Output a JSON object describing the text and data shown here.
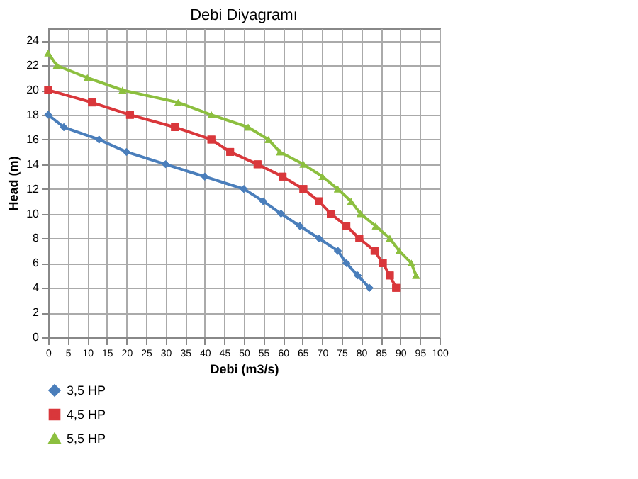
{
  "chart_data": {
    "type": "line",
    "title": "Debi Diyagramı",
    "xlabel": "Debi (m3/s)",
    "ylabel": "Head (m)",
    "xlim": [
      0,
      100
    ],
    "xticks": [
      0,
      5,
      10,
      15,
      20,
      25,
      30,
      35,
      40,
      45,
      50,
      55,
      60,
      65,
      70,
      75,
      80,
      85,
      90,
      95,
      100
    ],
    "ylim": [
      0,
      25
    ],
    "yticks": [
      0,
      2,
      4,
      6,
      8,
      10,
      12,
      14,
      16,
      18,
      20,
      22,
      24
    ],
    "grid": true,
    "legend": "bottom left",
    "series": [
      {
        "name": "3,5 HP",
        "color": "#4a7ebb",
        "marker": "diamond",
        "x": [
          0,
          4,
          13,
          20,
          30,
          40,
          50,
          55,
          59.5,
          64.3,
          69.2,
          74,
          76.2,
          79.1,
          82.1
        ],
        "values": [
          18,
          17,
          16,
          15,
          14,
          13,
          12,
          11,
          10,
          9,
          8,
          7,
          6,
          5,
          4
        ]
      },
      {
        "name": "4,5 HP",
        "color": "#d9373b",
        "marker": "square",
        "x": [
          0,
          11.2,
          20.9,
          32.4,
          41.7,
          46.5,
          53.5,
          59.9,
          65.2,
          69.2,
          72.2,
          76.2,
          79.5,
          83.4,
          85.5,
          87.3,
          88.9
        ],
        "values": [
          20,
          19,
          18,
          17,
          16,
          15,
          14,
          13,
          12,
          11,
          10,
          9,
          8,
          7,
          6,
          5,
          4
        ]
      },
      {
        "name": "5,5 HP",
        "color": "#8cbf3f",
        "marker": "triangle",
        "x": [
          0,
          2.2,
          10,
          19,
          33.2,
          41.7,
          51.1,
          56.3,
          59.2,
          65.2,
          70.1,
          74,
          77.4,
          79.8,
          83.7,
          87.3,
          89.7,
          92.8,
          94
        ],
        "values": [
          23,
          22,
          21,
          20,
          19,
          18,
          17,
          16,
          15,
          14,
          13,
          12,
          11,
          10,
          9,
          8,
          7,
          6,
          5
        ]
      }
    ]
  }
}
